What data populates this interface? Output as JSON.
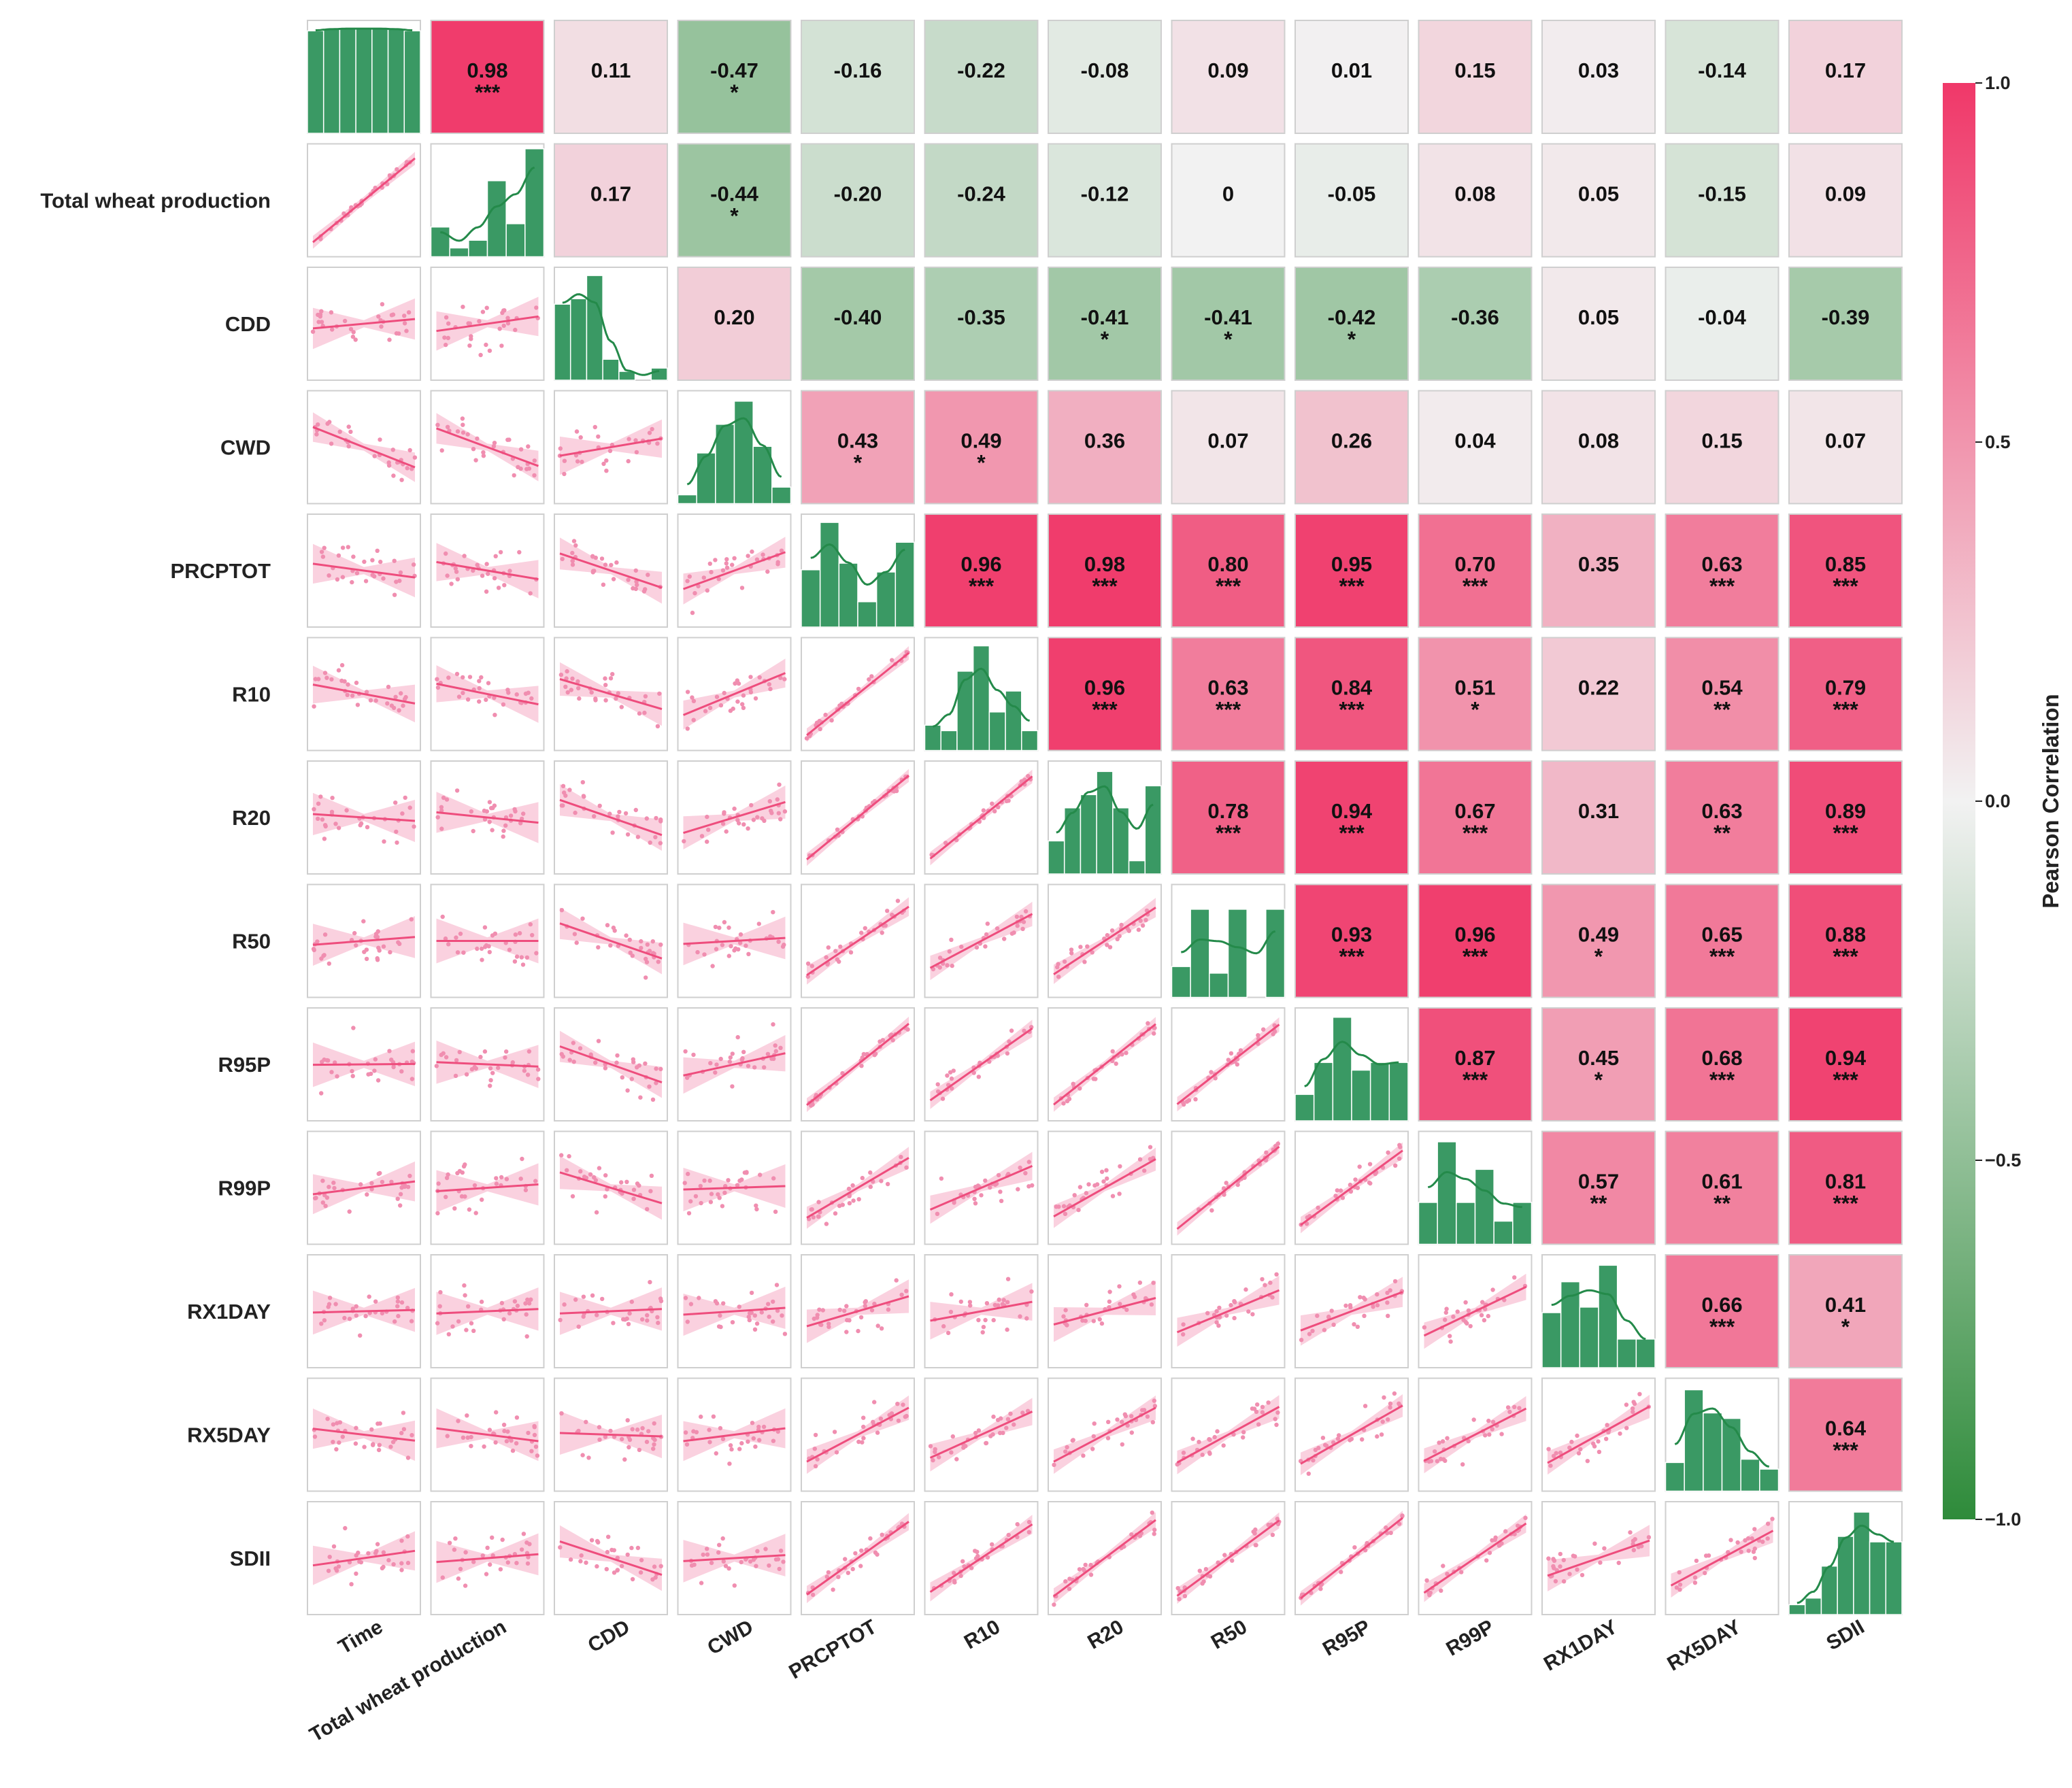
{
  "chart_data": {
    "type": "heatmap",
    "subtype": "correlation pair plot",
    "variables": [
      "Time",
      "Total wheat production",
      "CDD",
      "CWD",
      "PRCPTOT",
      "R10",
      "R20",
      "R50",
      "R95P",
      "R99P",
      "RX1DAY",
      "RX5DAY",
      "SDII"
    ],
    "row_labels": [
      "",
      "Total wheat production",
      "CDD",
      "CWD",
      "PRCPTOT",
      "R10",
      "R20",
      "R50",
      "R95P",
      "R99P",
      "RX1DAY",
      "RX5DAY",
      "SDII"
    ],
    "upper_triangle": [
      [
        null,
        {
          "label": "0.98",
          "sig": "***"
        },
        {
          "label": "0.11",
          "sig": ""
        },
        {
          "label": "-0.47",
          "sig": "*"
        },
        {
          "label": "-0.16",
          "sig": ""
        },
        {
          "label": "-0.22",
          "sig": ""
        },
        {
          "label": "-0.08",
          "sig": ""
        },
        {
          "label": "0.09",
          "sig": ""
        },
        {
          "label": "0.01",
          "sig": ""
        },
        {
          "label": "0.15",
          "sig": ""
        },
        {
          "label": "0.03",
          "sig": ""
        },
        {
          "label": "-0.14",
          "sig": ""
        },
        {
          "label": "0.17",
          "sig": ""
        }
      ],
      [
        null,
        null,
        {
          "label": "0.17",
          "sig": ""
        },
        {
          "label": "-0.44",
          "sig": "*"
        },
        {
          "label": "-0.20",
          "sig": ""
        },
        {
          "label": "-0.24",
          "sig": ""
        },
        {
          "label": "-0.12",
          "sig": ""
        },
        {
          "label": "0",
          "sig": ""
        },
        {
          "label": "-0.05",
          "sig": ""
        },
        {
          "label": "0.08",
          "sig": ""
        },
        {
          "label": "0.05",
          "sig": ""
        },
        {
          "label": "-0.15",
          "sig": ""
        },
        {
          "label": "0.09",
          "sig": ""
        }
      ],
      [
        null,
        null,
        null,
        {
          "label": "0.20",
          "sig": ""
        },
        {
          "label": "-0.40",
          "sig": ""
        },
        {
          "label": "-0.35",
          "sig": ""
        },
        {
          "label": "-0.41",
          "sig": "*"
        },
        {
          "label": "-0.41",
          "sig": "*"
        },
        {
          "label": "-0.42",
          "sig": "*"
        },
        {
          "label": "-0.36",
          "sig": ""
        },
        {
          "label": "0.05",
          "sig": ""
        },
        {
          "label": "-0.04",
          "sig": ""
        },
        {
          "label": "-0.39",
          "sig": ""
        }
      ],
      [
        null,
        null,
        null,
        null,
        {
          "label": "0.43",
          "sig": "*"
        },
        {
          "label": "0.49",
          "sig": "*"
        },
        {
          "label": "0.36",
          "sig": ""
        },
        {
          "label": "0.07",
          "sig": ""
        },
        {
          "label": "0.26",
          "sig": ""
        },
        {
          "label": "0.04",
          "sig": ""
        },
        {
          "label": "0.08",
          "sig": ""
        },
        {
          "label": "0.15",
          "sig": ""
        },
        {
          "label": "0.07",
          "sig": ""
        }
      ],
      [
        null,
        null,
        null,
        null,
        null,
        {
          "label": "0.96",
          "sig": "***"
        },
        {
          "label": "0.98",
          "sig": "***"
        },
        {
          "label": "0.80",
          "sig": "***"
        },
        {
          "label": "0.95",
          "sig": "***"
        },
        {
          "label": "0.70",
          "sig": "***"
        },
        {
          "label": "0.35",
          "sig": ""
        },
        {
          "label": "0.63",
          "sig": "***"
        },
        {
          "label": "0.85",
          "sig": "***"
        }
      ],
      [
        null,
        null,
        null,
        null,
        null,
        null,
        {
          "label": "0.96",
          "sig": "***"
        },
        {
          "label": "0.63",
          "sig": "***"
        },
        {
          "label": "0.84",
          "sig": "***"
        },
        {
          "label": "0.51",
          "sig": "*"
        },
        {
          "label": "0.22",
          "sig": ""
        },
        {
          "label": "0.54",
          "sig": "**"
        },
        {
          "label": "0.79",
          "sig": "***"
        }
      ],
      [
        null,
        null,
        null,
        null,
        null,
        null,
        null,
        {
          "label": "0.78",
          "sig": "***"
        },
        {
          "label": "0.94",
          "sig": "***"
        },
        {
          "label": "0.67",
          "sig": "***"
        },
        {
          "label": "0.31",
          "sig": ""
        },
        {
          "label": "0.63",
          "sig": "**"
        },
        {
          "label": "0.89",
          "sig": "***"
        }
      ],
      [
        null,
        null,
        null,
        null,
        null,
        null,
        null,
        null,
        {
          "label": "0.93",
          "sig": "***"
        },
        {
          "label": "0.96",
          "sig": "***"
        },
        {
          "label": "0.49",
          "sig": "*"
        },
        {
          "label": "0.65",
          "sig": "***"
        },
        {
          "label": "0.88",
          "sig": "***"
        }
      ],
      [
        null,
        null,
        null,
        null,
        null,
        null,
        null,
        null,
        null,
        {
          "label": "0.87",
          "sig": "***"
        },
        {
          "label": "0.45",
          "sig": "*"
        },
        {
          "label": "0.68",
          "sig": "***"
        },
        {
          "label": "0.94",
          "sig": "***"
        }
      ],
      [
        null,
        null,
        null,
        null,
        null,
        null,
        null,
        null,
        null,
        null,
        {
          "label": "0.57",
          "sig": "**"
        },
        {
          "label": "0.61",
          "sig": "**"
        },
        {
          "label": "0.81",
          "sig": "***"
        }
      ],
      [
        null,
        null,
        null,
        null,
        null,
        null,
        null,
        null,
        null,
        null,
        null,
        {
          "label": "0.66",
          "sig": "***"
        },
        {
          "label": "0.41",
          "sig": "*"
        }
      ],
      [
        null,
        null,
        null,
        null,
        null,
        null,
        null,
        null,
        null,
        null,
        null,
        null,
        {
          "label": "0.64",
          "sig": "***"
        }
      ],
      [
        null,
        null,
        null,
        null,
        null,
        null,
        null,
        null,
        null,
        null,
        null,
        null,
        null
      ]
    ],
    "diagonal_histograms": [
      [
        0.93,
        0.95,
        0.95,
        0.95,
        0.95,
        0.95,
        0.93
      ],
      [
        0.27,
        0.08,
        0.15,
        0.69,
        0.3,
        0.98
      ],
      [
        0.69,
        0.74,
        0.95,
        0.19,
        0.08,
        0.0,
        0.11
      ],
      [
        0.08,
        0.46,
        0.72,
        0.93,
        0.52,
        0.15
      ],
      [
        0.52,
        0.95,
        0.58,
        0.23,
        0.5,
        0.77
      ],
      [
        0.23,
        0.18,
        0.72,
        0.95,
        0.35,
        0.54,
        0.18
      ],
      [
        0.3,
        0.6,
        0.72,
        0.93,
        0.6,
        0.12,
        0.8
      ],
      [
        0.28,
        0.8,
        0.22,
        0.8,
        0.0,
        0.8
      ],
      [
        0.24,
        0.53,
        0.94,
        0.46,
        0.53,
        0.53
      ],
      [
        0.38,
        0.93,
        0.38,
        0.68,
        0.21,
        0.38
      ],
      [
        0.5,
        0.78,
        0.55,
        0.93,
        0.26,
        0.26
      ],
      [
        0.26,
        0.92,
        0.71,
        0.66,
        0.29,
        0.2
      ],
      [
        0.09,
        0.15,
        0.44,
        0.71,
        0.93,
        0.66,
        0.66
      ]
    ],
    "colorbar": {
      "title": "Pearson Correlation",
      "min": -1.0,
      "max": 1.0,
      "ticks": [
        "1.0",
        "0.5",
        "0.0",
        "−0.5",
        "−1.0"
      ],
      "tick_values": [
        1.0,
        0.5,
        0.0,
        -0.5,
        -1.0
      ],
      "colors": {
        "negative": "#2e8b3a",
        "zero": "#f2f2f2",
        "positive": "#f03869"
      }
    },
    "lower_triangle": "scatter plots with linear regression line and confidence band",
    "colors": {
      "scatter": "#f08eb0",
      "regression_line": "#ee4d7d",
      "confidence_band": "#f9c9d9",
      "histogram": "#3a9964",
      "kde": "#248a4a",
      "panel_border": "#cfcfcf"
    }
  }
}
